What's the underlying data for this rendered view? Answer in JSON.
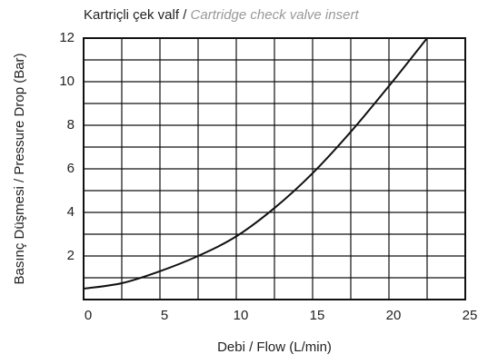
{
  "chart_data": {
    "type": "line",
    "title": "Kartriçli çek valf / ",
    "subtitle": "Cartridge check valve insert",
    "x_label": "Debi / Flow (L/min)",
    "y_label": "Basınç Düşmesi / Pressure Drop (Bar)",
    "x": [
      0,
      2.5,
      5,
      7.5,
      10,
      12.5,
      15,
      17.5,
      20,
      22.5
    ],
    "series": [
      {
        "name": "Cartridge check valve insert",
        "color": "#111111",
        "values": [
          0.5,
          0.75,
          1.3,
          2.0,
          2.9,
          4.2,
          5.8,
          7.7,
          9.8,
          12
        ]
      }
    ],
    "xlim": [
      0,
      25
    ],
    "xticks": [
      0,
      5,
      10,
      15,
      20,
      25
    ],
    "ylim": [
      0,
      12
    ],
    "yticks": [
      2,
      4,
      6,
      8,
      10,
      12
    ],
    "xgrid": [
      0,
      2.5,
      5,
      7.5,
      10,
      12.5,
      15,
      17.5,
      20,
      22.5,
      25
    ],
    "ygrid": [
      0,
      1,
      2,
      3,
      4,
      5,
      6,
      7,
      8,
      9,
      10,
      11,
      12
    ],
    "grid": true
  }
}
